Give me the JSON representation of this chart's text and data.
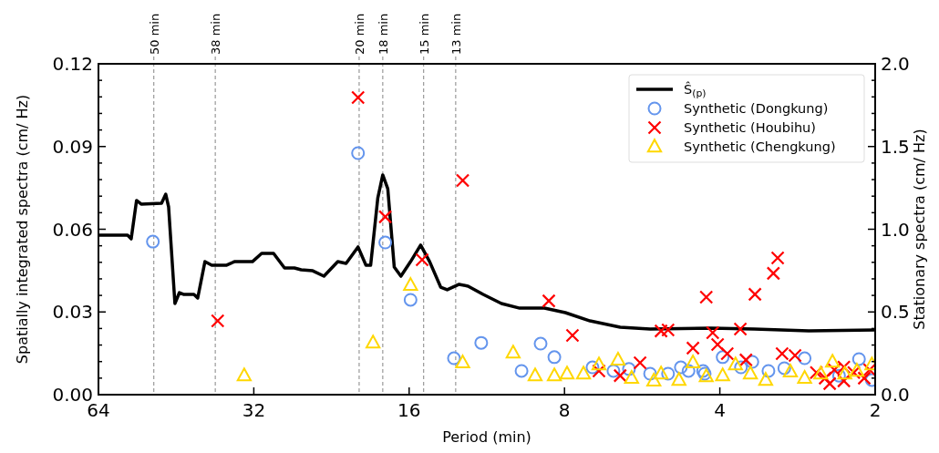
{
  "chart_data": {
    "type": "scatter",
    "xlabel": "Period (min)",
    "ylabel": "Spatially integrated spectra (cm/ Hz)",
    "y2label": "Stationary spectra (cm/ Hz)",
    "log": "x",
    "grid": false,
    "legend": "top right",
    "xlim": [
      64,
      2
    ],
    "xticks": [
      64,
      32,
      16,
      8,
      4,
      2
    ],
    "ylim": [
      0,
      0.12
    ],
    "yticks": [
      {
        "value": 0,
        "label": "0.00"
      },
      {
        "value": 0.006,
        "label": null
      },
      {
        "value": 0.012,
        "label": null
      },
      {
        "value": 0.018,
        "label": null
      },
      {
        "value": 0.024,
        "label": null
      },
      {
        "value": 0.03,
        "label": "0.03"
      },
      {
        "value": 0.036,
        "label": null
      },
      {
        "value": 0.042,
        "label": null
      },
      {
        "value": 0.048,
        "label": null
      },
      {
        "value": 0.054,
        "label": null
      },
      {
        "value": 0.06,
        "label": "0.06"
      },
      {
        "value": 0.066,
        "label": null
      },
      {
        "value": 0.072,
        "label": null
      },
      {
        "value": 0.078,
        "label": null
      },
      {
        "value": 0.084,
        "label": null
      },
      {
        "value": 0.09,
        "label": "0.09"
      },
      {
        "value": 0.096,
        "label": null
      },
      {
        "value": 0.102,
        "label": null
      },
      {
        "value": 0.108,
        "label": null
      },
      {
        "value": 0.114,
        "label": null
      },
      {
        "value": 0.12,
        "label": "0.12"
      }
    ],
    "y2lim": [
      0,
      2
    ],
    "y2ticks": [
      {
        "value": 0,
        "label": "0.0"
      },
      {
        "value": 0.1,
        "label": null
      },
      {
        "value": 0.2,
        "label": null
      },
      {
        "value": 0.3,
        "label": null
      },
      {
        "value": 0.4,
        "label": null
      },
      {
        "value": 0.5,
        "label": "0.5"
      },
      {
        "value": 0.6,
        "label": null
      },
      {
        "value": 0.7,
        "label": null
      },
      {
        "value": 0.8,
        "label": null
      },
      {
        "value": 0.9,
        "label": null
      },
      {
        "value": 1,
        "label": "1.0"
      },
      {
        "value": 1.1,
        "label": null
      },
      {
        "value": 1.2,
        "label": null
      },
      {
        "value": 1.3,
        "label": null
      },
      {
        "value": 1.4,
        "label": null
      },
      {
        "value": 1.5,
        "label": "1.5"
      },
      {
        "value": 1.6,
        "label": null
      },
      {
        "value": 1.7,
        "label": null
      },
      {
        "value": 1.8,
        "label": null
      },
      {
        "value": 1.9,
        "label": null
      },
      {
        "value": 2,
        "label": "2.0"
      }
    ],
    "ref_lines": [
      {
        "axis": "x",
        "value": 50,
        "label": "50 min",
        "color": "#999999",
        "line_style": "dashed"
      },
      {
        "axis": "x",
        "value": 38,
        "label": "38 min",
        "color": "#999999",
        "line_style": "dashed"
      },
      {
        "axis": "x",
        "value": 20,
        "label": "20 min",
        "color": "#999999",
        "line_style": "dashed"
      },
      {
        "axis": "x",
        "value": 18,
        "label": "18 min",
        "color": "#999999",
        "line_style": "dashed"
      },
      {
        "axis": "x",
        "value": 15,
        "label": "15 min",
        "color": "#999999",
        "line_style": "dashed"
      },
      {
        "axis": "x",
        "value": 13,
        "label": "13 min",
        "color": "#999999",
        "line_style": "dashed"
      }
    ],
    "series": [
      {
        "name": "Ŝ$_{(p)}$",
        "type": "line",
        "axis": "y2",
        "color": "#000000",
        "marker": "none",
        "line_style": "solid",
        "x": [
          64,
          56.2,
          55.3,
          54.0,
          52.9,
          48.3,
          47.4,
          46.8,
          45.5,
          44.6,
          43.7,
          41.8,
          41.1,
          39.8,
          38.6,
          36.2,
          34.9,
          32.2,
          30.9,
          29.3,
          27.9,
          26.7,
          25.9,
          24.6,
          23.4,
          22.0,
          21.2,
          20.1,
          19.4,
          19.0,
          18.4,
          18.0,
          17.6,
          17.1,
          16.6,
          15.9,
          15.2,
          14.6,
          13.9,
          13.5,
          12.8,
          12.3,
          11.5,
          10.6,
          9.77,
          8.75,
          7.97,
          7.14,
          6.24,
          5.46,
          4.16,
          3.43,
          2.69,
          2
        ],
        "values": [
          0.964,
          0.964,
          0.942,
          1.174,
          1.152,
          1.157,
          1.212,
          1.135,
          0.551,
          0.617,
          0.606,
          0.606,
          0.584,
          0.804,
          0.782,
          0.782,
          0.804,
          0.804,
          0.854,
          0.854,
          0.766,
          0.766,
          0.755,
          0.749,
          0.716,
          0.804,
          0.793,
          0.893,
          0.782,
          0.782,
          1.19,
          1.328,
          1.245,
          0.771,
          0.716,
          0.804,
          0.904,
          0.804,
          0.65,
          0.634,
          0.667,
          0.656,
          0.606,
          0.551,
          0.523,
          0.523,
          0.496,
          0.446,
          0.408,
          0.397,
          0.402,
          0.397,
          0.386,
          0.391
        ]
      },
      {
        "name": "Synthetic (Dongkung)",
        "color": "#6495ed",
        "marker": "circle",
        "x": [
          50.2,
          20.1,
          17.8,
          15.9,
          13.1,
          11.6,
          9.69,
          8.9,
          8.37,
          7.06,
          6.43,
          6.0,
          5.46,
          5.04,
          4.76,
          4.6,
          4.28,
          3.95,
          3.46,
          4.31,
          3.22,
          3.0,
          2.74,
          2.35,
          2.15,
          2.03,
          3.64
        ],
        "values": [
          0.0555,
          0.0876,
          0.0552,
          0.0344,
          0.0132,
          0.0188,
          0.0086,
          0.0185,
          0.0136,
          0.0099,
          0.0086,
          0.0093,
          0.0076,
          0.0076,
          0.0099,
          0.0086,
          0.0076,
          0.0136,
          0.0119,
          0.0086,
          0.0086,
          0.0096,
          0.0132,
          0.0069,
          0.0129,
          0.0053,
          0.0099
        ]
      },
      {
        "name": "Synthetic (Houbihu)",
        "color": "#ff0000",
        "marker": "cross",
        "x": [
          20.1,
          17.8,
          15.1,
          12.6,
          37.6,
          8.58,
          7.72,
          6.86,
          6.24,
          5.71,
          5.2,
          5.04,
          4.51,
          4.25,
          4.13,
          4.04,
          3.87,
          3.65,
          3.56,
          3.42,
          3.15,
          3.09,
          3.03,
          2.86,
          2.6,
          2.5,
          2.4,
          2.3,
          2.2,
          2.1,
          2.05,
          2.3,
          2.45
        ],
        "values": [
          0.1078,
          0.0645,
          0.0489,
          0.0777,
          0.0268,
          0.034,
          0.0215,
          0.0086,
          0.0069,
          0.0116,
          0.0231,
          0.0235,
          0.0169,
          0.0354,
          0.0225,
          0.0182,
          0.0149,
          0.0238,
          0.0126,
          0.0364,
          0.044,
          0.0496,
          0.0149,
          0.0142,
          0.008,
          0.006,
          0.009,
          0.005,
          0.008,
          0.006,
          0.009,
          0.01,
          0.004
        ]
      },
      {
        "name": "Synthetic (Chengkung)",
        "color": "#ffd700",
        "marker": "triangle",
        "x": [
          33.4,
          18.8,
          15.9,
          12.6,
          10.06,
          9.12,
          8.37,
          7.91,
          7.35,
          6.86,
          6.3,
          5.93,
          5.37,
          5.2,
          4.8,
          4.51,
          4.25,
          3.95,
          3.73,
          3.49,
          3.26,
          2.92,
          2.74,
          2.55,
          2.42,
          2.29,
          2.17,
          2.03
        ],
        "values": [
          0.0069,
          0.0188,
          0.0397,
          0.0116,
          0.0152,
          0.0069,
          0.0069,
          0.0076,
          0.0076,
          0.0109,
          0.0126,
          0.006,
          0.005,
          0.0076,
          0.0053,
          0.0116,
          0.0066,
          0.0069,
          0.0109,
          0.0076,
          0.0053,
          0.0083,
          0.006,
          0.0076,
          0.0119,
          0.0076,
          0.0086,
          0.0109
        ]
      }
    ]
  }
}
